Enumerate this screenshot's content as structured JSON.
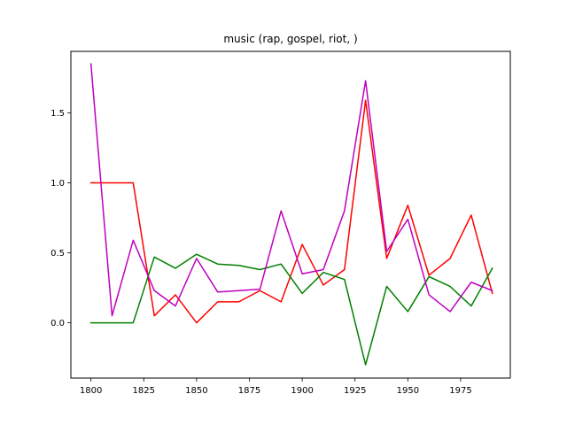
{
  "chart_data": {
    "type": "line",
    "title": "music (rap, gospel, riot, )",
    "xlabel": "",
    "ylabel": "",
    "xlim": [
      1790.5,
      1998.5
    ],
    "ylim": [
      -0.395,
      1.94
    ],
    "xticks": [
      1800,
      1825,
      1850,
      1875,
      1900,
      1925,
      1950,
      1975
    ],
    "xtick_labels": [
      "1800",
      "1825",
      "1850",
      "1875",
      "1900",
      "1925",
      "1950",
      "1975"
    ],
    "yticks": [
      0.0,
      0.5,
      1.0,
      1.5
    ],
    "ytick_labels": [
      "0.0",
      "0.5",
      "1.0",
      "1.5"
    ],
    "grid": false,
    "legend": "none",
    "x": [
      1800,
      1810,
      1820,
      1830,
      1840,
      1850,
      1860,
      1870,
      1880,
      1890,
      1900,
      1910,
      1920,
      1930,
      1940,
      1950,
      1960,
      1970,
      1980,
      1990
    ],
    "series": [
      {
        "color": "#ff0000",
        "values": [
          1.0,
          1.0,
          1.0,
          0.05,
          0.2,
          0.0,
          0.15,
          0.15,
          0.23,
          0.15,
          0.56,
          0.27,
          0.38,
          1.59,
          0.46,
          0.84,
          0.34,
          0.46,
          0.77,
          0.21
        ]
      },
      {
        "color": "#008000",
        "values": [
          0.0,
          0.0,
          0.0,
          0.47,
          0.39,
          0.49,
          0.42,
          0.41,
          0.38,
          0.42,
          0.21,
          0.36,
          0.31,
          -0.3,
          0.26,
          0.08,
          0.33,
          0.26,
          0.12,
          0.39
        ]
      },
      {
        "color": "#bf00bf",
        "values": [
          1.85,
          0.05,
          0.59,
          0.23,
          0.12,
          0.46,
          0.22,
          0.23,
          0.24,
          0.8,
          0.35,
          0.38,
          0.8,
          1.73,
          0.51,
          0.74,
          0.2,
          0.08,
          0.29,
          0.23
        ]
      }
    ]
  }
}
